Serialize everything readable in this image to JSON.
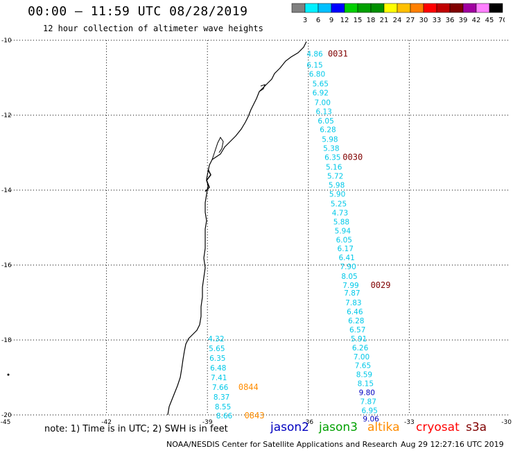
{
  "title": "00:00 – 11:59 UTC 08/28/2019",
  "subtitle": "12 hour collection of altimeter wave heights",
  "scale": {
    "labels": [
      "3",
      "6",
      "9",
      "12",
      "15",
      "18",
      "21",
      "24",
      "27",
      "30",
      "33",
      "36",
      "39",
      "42",
      "45",
      "70 (ft)"
    ],
    "colors": [
      "#808080",
      "#00f0ff",
      "#00c0ff",
      "#0000ff",
      "#00d000",
      "#00a000",
      "#009000",
      "#ffff00",
      "#ffc000",
      "#ff8000",
      "#ff0000",
      "#c00000",
      "#800000",
      "#a000a0",
      "#ff80ff",
      "#000000"
    ]
  },
  "axes": {
    "lat_labels": [
      "-10",
      "-12",
      "-14",
      "-16",
      "-18",
      "-20"
    ],
    "lon_labels": [
      "-45",
      "-42",
      "-39",
      "-36",
      "-33",
      "-30"
    ]
  },
  "colors": {
    "cyan": "#00c8e8",
    "blue": "#0000c0",
    "time_red": "#800000",
    "time_orange": "#ff8c00"
  },
  "track_values": [
    {
      "v": "4.86",
      "lat": -10.36,
      "lon": -36.05,
      "c": "cyan"
    },
    {
      "v": "6.15",
      "lat": -10.66,
      "lon": -36.05,
      "c": "cyan"
    },
    {
      "v": "6.80",
      "lat": -10.9,
      "lon": -35.98,
      "c": "cyan"
    },
    {
      "v": "5.65",
      "lat": -11.16,
      "lon": -35.88,
      "c": "cyan"
    },
    {
      "v": "6.92",
      "lat": -11.4,
      "lon": -35.88,
      "c": "cyan"
    },
    {
      "v": "7.00",
      "lat": -11.66,
      "lon": -35.82,
      "c": "cyan"
    },
    {
      "v": "6.13",
      "lat": -11.9,
      "lon": -35.78,
      "c": "cyan"
    },
    {
      "v": "6.05",
      "lat": -12.15,
      "lon": -35.72,
      "c": "cyan"
    },
    {
      "v": "6.28",
      "lat": -12.38,
      "lon": -35.66,
      "c": "cyan"
    },
    {
      "v": "5.98",
      "lat": -12.64,
      "lon": -35.6,
      "c": "cyan"
    },
    {
      "v": "5.38",
      "lat": -12.88,
      "lon": -35.56,
      "c": "cyan"
    },
    {
      "v": "6.35",
      "lat": -13.12,
      "lon": -35.52,
      "c": "cyan"
    },
    {
      "v": "5.16",
      "lat": -13.38,
      "lon": -35.48,
      "c": "cyan"
    },
    {
      "v": "5.72",
      "lat": -13.62,
      "lon": -35.44,
      "c": "cyan"
    },
    {
      "v": "5.98",
      "lat": -13.86,
      "lon": -35.4,
      "c": "cyan"
    },
    {
      "v": "5.90",
      "lat": -14.1,
      "lon": -35.38,
      "c": "cyan"
    },
    {
      "v": "5.25",
      "lat": -14.36,
      "lon": -35.34,
      "c": "cyan"
    },
    {
      "v": "4.73",
      "lat": -14.6,
      "lon": -35.3,
      "c": "cyan"
    },
    {
      "v": "5.88",
      "lat": -14.84,
      "lon": -35.26,
      "c": "cyan"
    },
    {
      "v": "5.94",
      "lat": -15.08,
      "lon": -35.22,
      "c": "cyan"
    },
    {
      "v": "6.05",
      "lat": -15.32,
      "lon": -35.18,
      "c": "cyan"
    },
    {
      "v": "6.17",
      "lat": -15.56,
      "lon": -35.14,
      "c": "cyan"
    },
    {
      "v": "6.41",
      "lat": -15.8,
      "lon": -35.1,
      "c": "cyan"
    },
    {
      "v": "7.90",
      "lat": -16.04,
      "lon": -35.06,
      "c": "cyan"
    },
    {
      "v": "8.05",
      "lat": -16.3,
      "lon": -35.02,
      "c": "cyan"
    },
    {
      "v": "7.99",
      "lat": -16.54,
      "lon": -34.98,
      "c": "cyan"
    },
    {
      "v": "7.87",
      "lat": -16.74,
      "lon": -34.94,
      "c": "cyan"
    },
    {
      "v": "7.83",
      "lat": -17.0,
      "lon": -34.9,
      "c": "cyan"
    },
    {
      "v": "6.46",
      "lat": -17.24,
      "lon": -34.86,
      "c": "cyan"
    },
    {
      "v": "6.28",
      "lat": -17.48,
      "lon": -34.82,
      "c": "cyan"
    },
    {
      "v": "6.57",
      "lat": -17.72,
      "lon": -34.78,
      "c": "cyan"
    },
    {
      "v": "5.91",
      "lat": -17.96,
      "lon": -34.74,
      "c": "cyan"
    },
    {
      "v": "6.26",
      "lat": -18.2,
      "lon": -34.7,
      "c": "cyan"
    },
    {
      "v": "7.00",
      "lat": -18.44,
      "lon": -34.66,
      "c": "cyan"
    },
    {
      "v": "7.65",
      "lat": -18.68,
      "lon": -34.62,
      "c": "cyan"
    },
    {
      "v": "8.59",
      "lat": -18.92,
      "lon": -34.58,
      "c": "cyan"
    },
    {
      "v": "8.15",
      "lat": -19.16,
      "lon": -34.54,
      "c": "cyan"
    },
    {
      "v": "9.80",
      "lat": -19.4,
      "lon": -34.5,
      "c": "blue"
    },
    {
      "v": "7.87",
      "lat": -19.64,
      "lon": -34.46,
      "c": "cyan"
    },
    {
      "v": "6.95",
      "lat": -19.88,
      "lon": -34.42,
      "c": "cyan"
    },
    {
      "v": "9.06",
      "lat": -20.1,
      "lon": -34.38,
      "c": "blue"
    },
    {
      "v": "4.32",
      "lat": -17.96,
      "lon": -38.98,
      "c": "cyan"
    },
    {
      "v": "5.65",
      "lat": -18.22,
      "lon": -38.96,
      "c": "cyan"
    },
    {
      "v": "6.35",
      "lat": -18.48,
      "lon": -38.94,
      "c": "cyan"
    },
    {
      "v": "6.48",
      "lat": -18.74,
      "lon": -38.92,
      "c": "cyan"
    },
    {
      "v": "7.41",
      "lat": -19.0,
      "lon": -38.9,
      "c": "cyan"
    },
    {
      "v": "7.66",
      "lat": -19.26,
      "lon": -38.86,
      "c": "cyan"
    },
    {
      "v": "8.37",
      "lat": -19.52,
      "lon": -38.82,
      "c": "cyan"
    },
    {
      "v": "8.55",
      "lat": -19.78,
      "lon": -38.78,
      "c": "cyan"
    },
    {
      "v": "8.66",
      "lat": -20.02,
      "lon": -38.74,
      "c": "cyan"
    }
  ],
  "time_labels": [
    {
      "t": "0031",
      "lat": -10.36,
      "lon": -35.42,
      "c": "time_red"
    },
    {
      "t": "0030",
      "lat": -13.12,
      "lon": -34.98,
      "c": "time_red"
    },
    {
      "t": "0029",
      "lat": -16.54,
      "lon": -34.15,
      "c": "time_red"
    },
    {
      "t": "0844",
      "lat": -19.26,
      "lon": -38.08,
      "c": "time_orange"
    },
    {
      "t": "0843",
      "lat": -20.02,
      "lon": -37.9,
      "c": "time_orange"
    }
  ],
  "note": "note: 1) Time is in UTC; 2) SWH is in feet",
  "satellites": [
    {
      "name": "jason2",
      "color": "#0000c0"
    },
    {
      "name": "jason3",
      "color": "#00a000"
    },
    {
      "name": "altika",
      "color": "#ff8c00"
    },
    {
      "name": "cryosat",
      "color": "#ff0000"
    },
    {
      "name": "s3a",
      "color": "#800000"
    }
  ],
  "footer": {
    "left": "NOAA/NESDIS Center for Satellite Applications and Research",
    "right": "Aug 29 12:27:16 UTC 2019"
  }
}
